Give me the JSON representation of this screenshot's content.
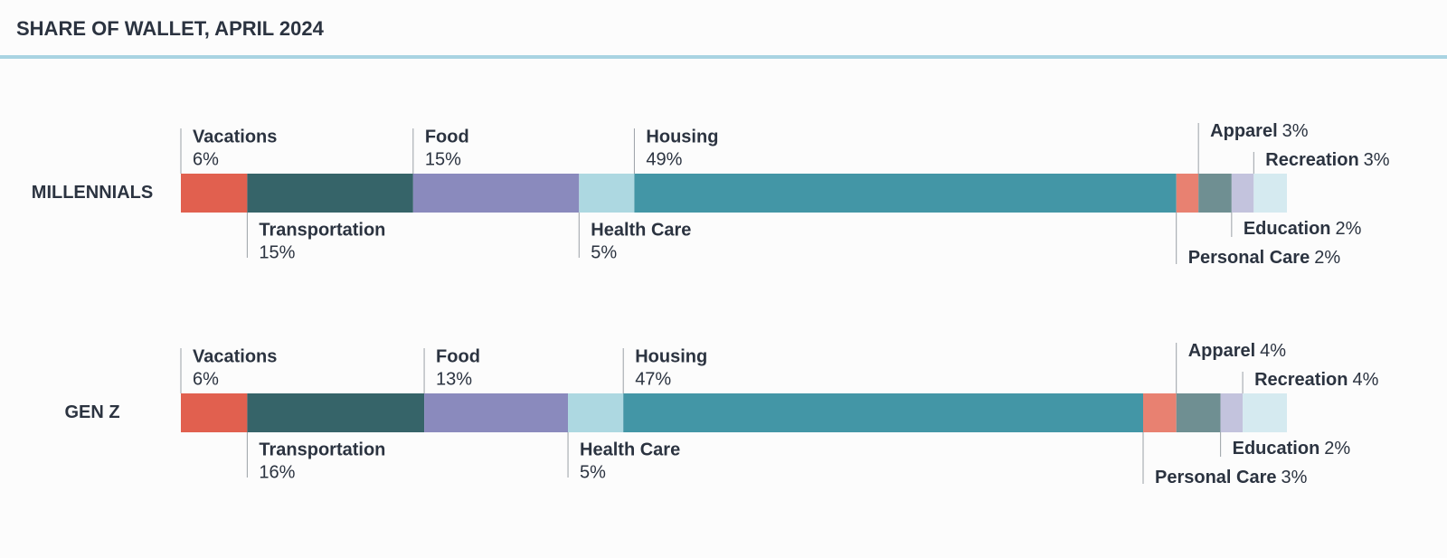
{
  "chart_data": {
    "type": "stacked-bar",
    "title": "SHARE OF WALLET, APRIL 2024",
    "categories": [
      "MILLENNIALS",
      "GEN Z"
    ],
    "xlim": [
      0,
      100
    ],
    "series": [
      {
        "name": "Vacations",
        "color": "#e1604f",
        "values": [
          6,
          6
        ],
        "value_labels": [
          "6%",
          "6%"
        ]
      },
      {
        "name": "Transportation",
        "color": "#366469",
        "values": [
          15,
          16
        ],
        "value_labels": [
          "15%",
          "16%"
        ]
      },
      {
        "name": "Food",
        "color": "#8a8abd",
        "values": [
          15,
          13
        ],
        "value_labels": [
          "15%",
          "13%"
        ]
      },
      {
        "name": "Health Care",
        "color": "#add8e1",
        "values": [
          5,
          5
        ],
        "value_labels": [
          "5%",
          "5%"
        ]
      },
      {
        "name": "Housing",
        "color": "#4396a6",
        "values": [
          49,
          47
        ],
        "value_labels": [
          "49%",
          "47%"
        ]
      },
      {
        "name": "Personal Care",
        "color": "#e88171",
        "values": [
          2,
          3
        ],
        "value_labels": [
          "2%",
          "3%"
        ]
      },
      {
        "name": "Apparel",
        "color": "#6f8f92",
        "values": [
          3,
          4
        ],
        "value_labels": [
          "3%",
          "4%"
        ]
      },
      {
        "name": "Education",
        "color": "#c3c3dd",
        "values": [
          2,
          2
        ],
        "value_labels": [
          "2%",
          "2%"
        ]
      },
      {
        "name": "Recreation",
        "color": "#d5eaf0",
        "values": [
          3,
          4
        ],
        "value_labels": [
          "3%",
          "4%"
        ]
      }
    ]
  }
}
